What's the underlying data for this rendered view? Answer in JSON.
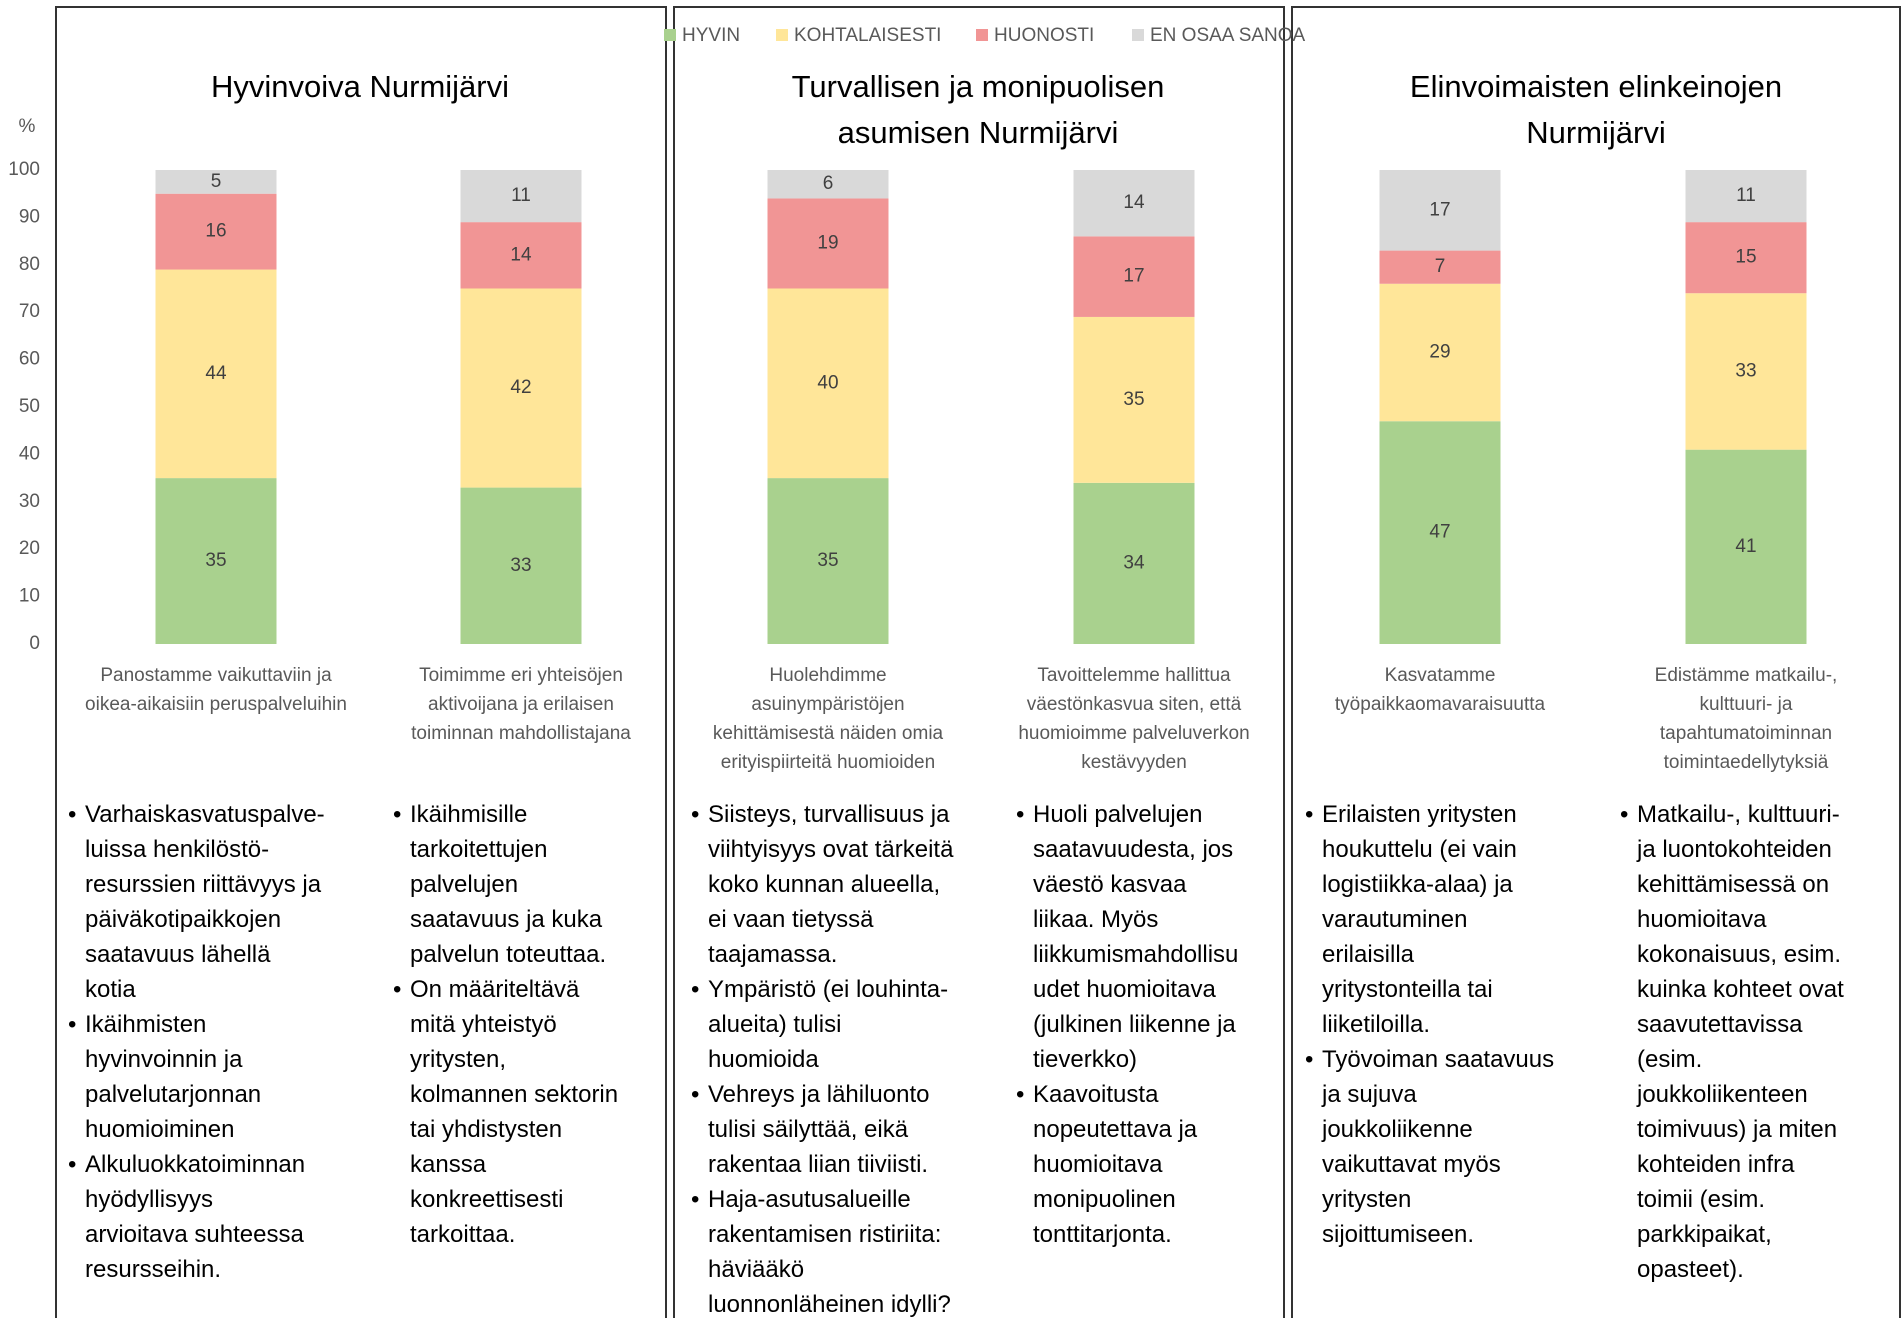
{
  "chart_data": {
    "type": "stacked_bar",
    "y_axis_label": "%",
    "categories": [
      "Panostamme vaikuttaviin ja\noikea-aikaisiin peruspalveluihin",
      "Toimimme eri yhteisöjen\naktivoijana ja erilaisen\ntoiminnan mahdollistajana",
      "Huolehdimme\nasuinympäristöjen\nkehittämisestä näiden omia\nerityispiirteitä huomioiden",
      "Tavoittelemme hallittua\nväestönkasvua siten, että\nhuomioimme palveluverkon\nkestävyyden",
      "Kasvatamme\ntyöpaikkaomavaraisuutta",
      "Edistämme matkailu-,\nkulttuuri- ja\ntapahtumatoiminnan\ntoimintaedellytyksiä"
    ],
    "series": [
      {
        "name": "HYVIN",
        "color": "#a9d18e",
        "values": [
          35,
          33,
          35,
          34,
          47,
          41
        ]
      },
      {
        "name": "KOHTALAISESTI",
        "color": "#ffe699",
        "values": [
          44,
          42,
          40,
          35,
          29,
          33
        ]
      },
      {
        "name": "HUONOSTI",
        "color": "#f19595",
        "values": [
          16,
          14,
          19,
          17,
          7,
          15
        ]
      },
      {
        "name": "EN OSAA SANOA",
        "color": "#d9d9d9",
        "values": [
          5,
          11,
          6,
          14,
          17,
          11
        ]
      }
    ],
    "ylim": [
      0,
      100
    ],
    "yticks": [
      0,
      10,
      20,
      30,
      40,
      50,
      60,
      70,
      80,
      90,
      100
    ],
    "grid": false,
    "legend": "top"
  },
  "panels": [
    {
      "title": "Hyvinvoiva Nurmijärvi"
    },
    {
      "title": "Turvallisen ja monipuolisen\nasumisen Nurmijärvi"
    },
    {
      "title": "Elinvoimaisten elinkeinojen\nNurmijärvi"
    }
  ],
  "bullet_columns": [
    [
      "Varhaiskasvatuspalve-\nluissa henkilöstö-\nresurssien riittävyys ja\npäiväkotipaikkojen\nsaatavuus lähellä\nkotia",
      "Ikäihmisten\nhyvinvoinnin ja\npalvelutarjonnan\nhuomioiminen",
      "Alkuluokkatoiminnan\nhyödyllisyys\narvioitava suhteessa\nresursseihin."
    ],
    [
      "Ikäihmisille\ntarkoitettujen\npalvelujen\nsaatavuus ja kuka\npalvelun toteuttaa.",
      "On määriteltävä\nmitä yhteistyö\nyritysten,\nkolmannen sektorin\ntai yhdistysten\nkanssa\nkonkreettisesti\ntarkoittaa."
    ],
    [
      "Siisteys, turvallisuus ja\nviihtyisyys ovat tärkeitä\nkoko kunnan alueella,\nei vaan tietyssä\ntaajamassa.",
      "Ympäristö (ei louhinta-\nalueita) tulisi\nhuomioida",
      "Vehreys ja lähiluonto\ntulisi säilyttää, eikä\nrakentaa liian tiiviisti.",
      "Haja-asutusalueille\nrakentamisen ristiriita:\nhäviääkö\nluonnonläheinen idylli?"
    ],
    [
      "Huoli palvelujen\nsaatavuudesta, jos\nväestö kasvaa\nliikaa. Myös\nliikkumismahdollisu\nudet huomioitava\n(julkinen liikenne ja\ntieverkko)",
      "Kaavoitusta\nnopeutettava ja\nhuomioitava\nmonipuolinen\ntonttitarjonta."
    ],
    [
      "Erilaisten yritysten\nhoukuttelu (ei vain\nlogistiikka-alaa) ja\nvarautuminen\nerilaisilla\nyritystonteilla tai\nliiketiloilla.",
      "Työvoiman saatavuus\nja sujuva\njoukkoliikenne\nvaikuttavat myös\nyritysten\nsijoittumiseen."
    ],
    [
      "Matkailu-, kulttuuri-\nja luontokohteiden\nkehittämisessä on\nhuomioitava\nkokonaisuus, esim.\nkuinka kohteet ovat\nsaavutettavissa\n(esim.\njoukkoliikenteen\ntoimivuus) ja miten\nkohteiden infra\ntoimii (esim.\nparkkipaikat,\nopasteet)."
    ]
  ]
}
